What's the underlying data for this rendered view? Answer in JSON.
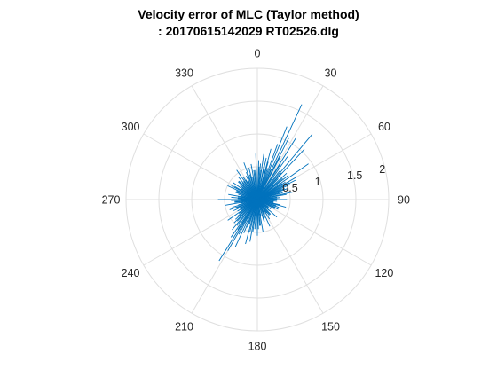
{
  "chart_data": {
    "type": "polar-line",
    "title_lines": [
      "Velocity error of MLC (Taylor method)",
      ": 20170615142029 RT02526.dlg"
    ],
    "theta_direction": "clockwise",
    "theta_zero_location": "top",
    "theta_ticks": [
      0,
      30,
      60,
      90,
      120,
      150,
      180,
      210,
      240,
      270,
      300,
      330
    ],
    "r_ticks": [
      "0.5",
      "1",
      "1.5",
      "2"
    ],
    "r_tick_values": [
      0.5,
      1,
      1.5,
      2
    ],
    "rlim": [
      0,
      2
    ],
    "grid": true,
    "line_color": "#0072BD",
    "grid_color": "#DFDFDF",
    "series": [
      {
        "theta": [
          22,
          25,
          27,
          20,
          32,
          35,
          40,
          43,
          48,
          55,
          60,
          65,
          70,
          75,
          80,
          85,
          90,
          95,
          100,
          105,
          110,
          118,
          125,
          132,
          140,
          148,
          155,
          162,
          170,
          175,
          180,
          185,
          190,
          195,
          200,
          205,
          210,
          212,
          215,
          220,
          225,
          230,
          235,
          240,
          245,
          250,
          255,
          260,
          265,
          270,
          275,
          280,
          285,
          290,
          295,
          300,
          305,
          310,
          315,
          320,
          325,
          330,
          335,
          340,
          345,
          350,
          355,
          358,
          2,
          5,
          8,
          12,
          15,
          18,
          28,
          38,
          45,
          52,
          58,
          63,
          68,
          72,
          78,
          88,
          98,
          108,
          115,
          128,
          138,
          145,
          158,
          168,
          178,
          188,
          198,
          202,
          208,
          218,
          228,
          238,
          248,
          258,
          268,
          278,
          288,
          298,
          308,
          318,
          328,
          338,
          348,
          3,
          7,
          11,
          16,
          24,
          33,
          42,
          50,
          57,
          62,
          67,
          73,
          83,
          93,
          103,
          113,
          123,
          133,
          143,
          153,
          163,
          173,
          183,
          193,
          213,
          223,
          233,
          243,
          253,
          263,
          273,
          283,
          293,
          303,
          313,
          323,
          333,
          343,
          353
        ],
        "r": [
          1.2,
          1.6,
          1.05,
          0.9,
          1.1,
          0.8,
          1.3,
          1.05,
          0.6,
          0.95,
          0.7,
          0.55,
          0.5,
          0.4,
          0.45,
          0.35,
          0.45,
          0.3,
          0.25,
          0.45,
          0.35,
          0.3,
          0.25,
          0.4,
          0.3,
          0.35,
          0.45,
          0.35,
          0.5,
          0.4,
          0.55,
          0.45,
          0.65,
          0.7,
          0.45,
          0.8,
          0.9,
          1.1,
          0.7,
          0.6,
          0.5,
          0.4,
          0.55,
          0.35,
          0.4,
          0.45,
          0.3,
          0.5,
          0.35,
          0.6,
          0.4,
          0.45,
          0.3,
          0.35,
          0.5,
          0.4,
          0.45,
          0.35,
          0.4,
          0.45,
          0.55,
          0.35,
          0.4,
          0.6,
          0.5,
          0.55,
          0.45,
          0.7,
          0.6,
          0.55,
          0.7,
          0.65,
          0.8,
          0.5,
          0.75,
          0.55,
          0.45,
          0.6,
          0.5,
          0.65,
          0.45,
          0.35,
          0.55,
          0.3,
          0.25,
          0.3,
          0.35,
          0.2,
          0.3,
          0.25,
          0.3,
          0.25,
          0.45,
          0.5,
          0.4,
          0.55,
          0.6,
          0.5,
          0.45,
          0.3,
          0.35,
          0.25,
          0.4,
          0.3,
          0.35,
          0.45,
          0.3,
          0.35,
          0.4,
          0.45,
          0.35,
          0.5,
          0.45,
          0.55,
          0.6,
          0.5,
          0.65,
          0.55,
          0.5,
          0.45,
          0.55,
          0.4,
          0.35,
          0.3,
          0.25,
          0.35,
          0.3,
          0.2,
          0.25,
          0.3,
          0.25,
          0.35,
          0.4,
          0.45,
          0.5,
          0.55,
          0.45,
          0.35,
          0.3,
          0.4,
          0.35,
          0.3,
          0.25,
          0.35,
          0.3,
          0.4,
          0.35,
          0.3,
          0.4,
          0.45
        ]
      }
    ]
  }
}
